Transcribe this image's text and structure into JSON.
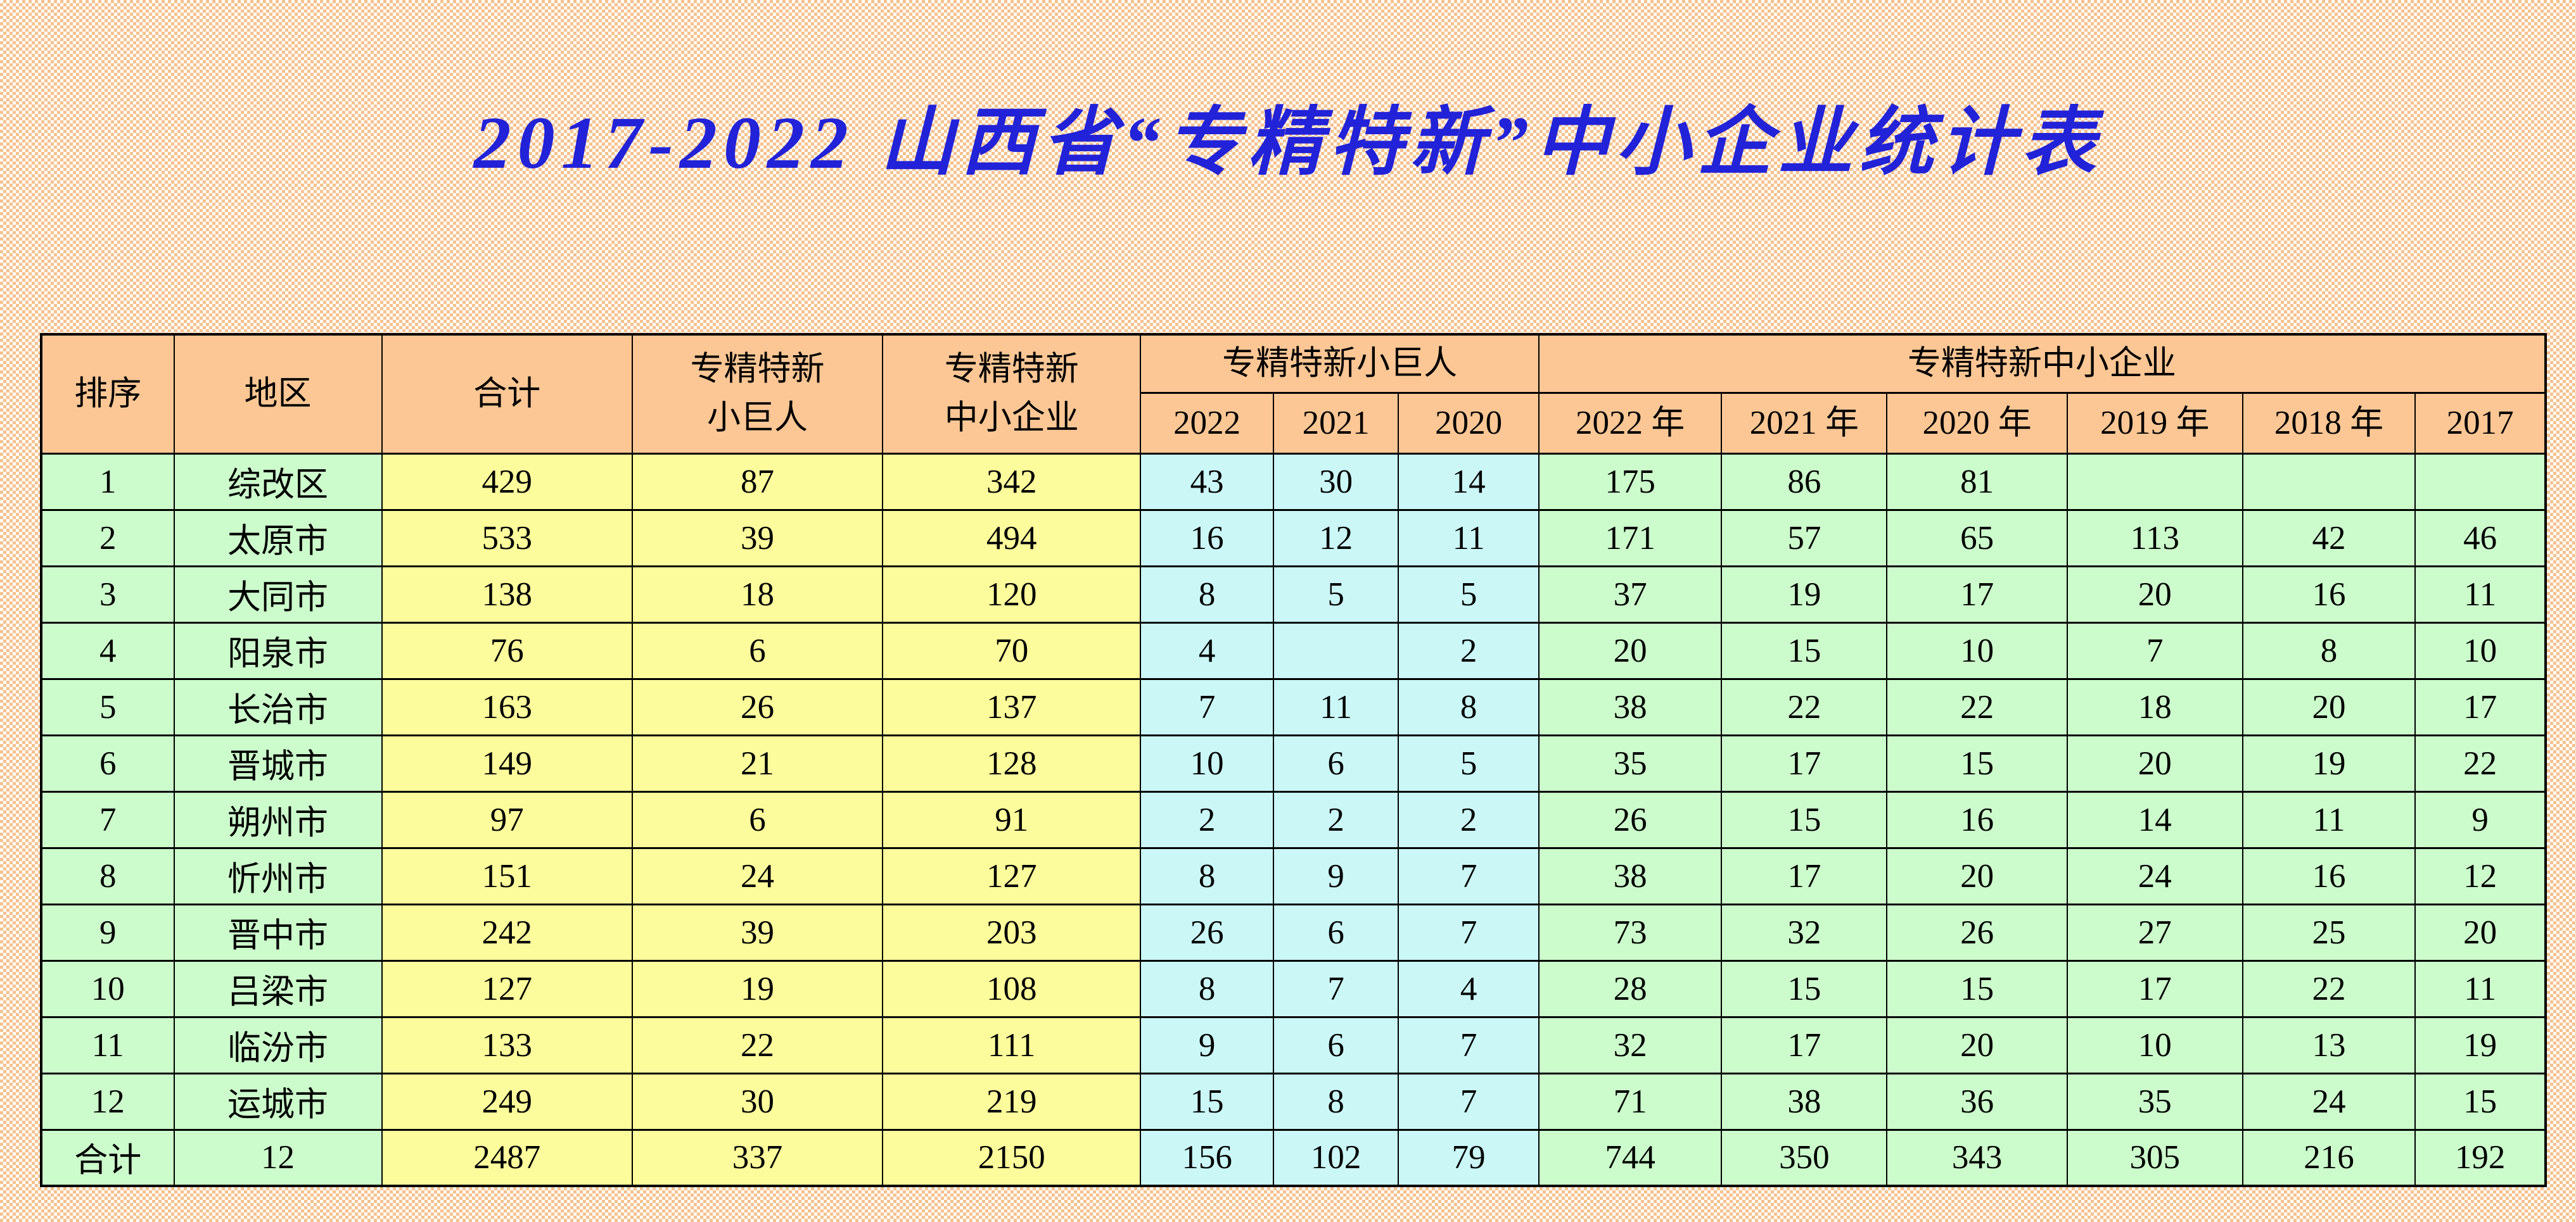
{
  "title": "2017-2022 山西省“专精特新”中小企业统计表",
  "colors": {
    "title_blue": "#2222d8",
    "header_orange": "#fcc795",
    "cell_green": "#ccfccc",
    "cell_yellow": "#fdfc9c",
    "cell_cyan": "#cbf7f7",
    "border_black": "#000000",
    "background_weave_orange": "#f6c28e"
  },
  "table": {
    "headers": {
      "rank": "排序",
      "region": "地区",
      "total": "合计",
      "giant_total": "专精特新\n小巨人",
      "sme_total": "专精特新\n中小企业",
      "giant_group": "专精特新小巨人",
      "sme_group": "专精特新中小企业",
      "giant_years": [
        "2022",
        "2021",
        "2020"
      ],
      "sme_years": [
        "2022 年",
        "2021 年",
        "2020 年",
        "2019 年",
        "2018 年",
        "2017"
      ]
    },
    "column_colors": [
      "green",
      "green",
      "yellow",
      "yellow",
      "yellow",
      "cyan",
      "cyan",
      "cyan",
      "green",
      "green",
      "green",
      "green",
      "green",
      "green"
    ],
    "rows": [
      [
        "1",
        "综改区",
        "429",
        "87",
        "342",
        "43",
        "30",
        "14",
        "175",
        "86",
        "81",
        "",
        "",
        ""
      ],
      [
        "2",
        "太原市",
        "533",
        "39",
        "494",
        "16",
        "12",
        "11",
        "171",
        "57",
        "65",
        "113",
        "42",
        "46"
      ],
      [
        "3",
        "大同市",
        "138",
        "18",
        "120",
        "8",
        "5",
        "5",
        "37",
        "19",
        "17",
        "20",
        "16",
        "11"
      ],
      [
        "4",
        "阳泉市",
        "76",
        "6",
        "70",
        "4",
        "",
        "2",
        "20",
        "15",
        "10",
        "7",
        "8",
        "10"
      ],
      [
        "5",
        "长治市",
        "163",
        "26",
        "137",
        "7",
        "11",
        "8",
        "38",
        "22",
        "22",
        "18",
        "20",
        "17"
      ],
      [
        "6",
        "晋城市",
        "149",
        "21",
        "128",
        "10",
        "6",
        "5",
        "35",
        "17",
        "15",
        "20",
        "19",
        "22"
      ],
      [
        "7",
        "朔州市",
        "97",
        "6",
        "91",
        "2",
        "2",
        "2",
        "26",
        "15",
        "16",
        "14",
        "11",
        "9"
      ],
      [
        "8",
        "忻州市",
        "151",
        "24",
        "127",
        "8",
        "9",
        "7",
        "38",
        "17",
        "20",
        "24",
        "16",
        "12"
      ],
      [
        "9",
        "晋中市",
        "242",
        "39",
        "203",
        "26",
        "6",
        "7",
        "73",
        "32",
        "26",
        "27",
        "25",
        "20"
      ],
      [
        "10",
        "吕梁市",
        "127",
        "19",
        "108",
        "8",
        "7",
        "4",
        "28",
        "15",
        "15",
        "17",
        "22",
        "11"
      ],
      [
        "11",
        "临汾市",
        "133",
        "22",
        "111",
        "9",
        "6",
        "7",
        "32",
        "17",
        "20",
        "10",
        "13",
        "19"
      ],
      [
        "12",
        "运城市",
        "249",
        "30",
        "219",
        "15",
        "8",
        "7",
        "71",
        "38",
        "36",
        "35",
        "24",
        "15"
      ],
      [
        "合计",
        "12",
        "2487",
        "337",
        "2150",
        "156",
        "102",
        "79",
        "744",
        "350",
        "343",
        "305",
        "216",
        "192"
      ]
    ]
  }
}
